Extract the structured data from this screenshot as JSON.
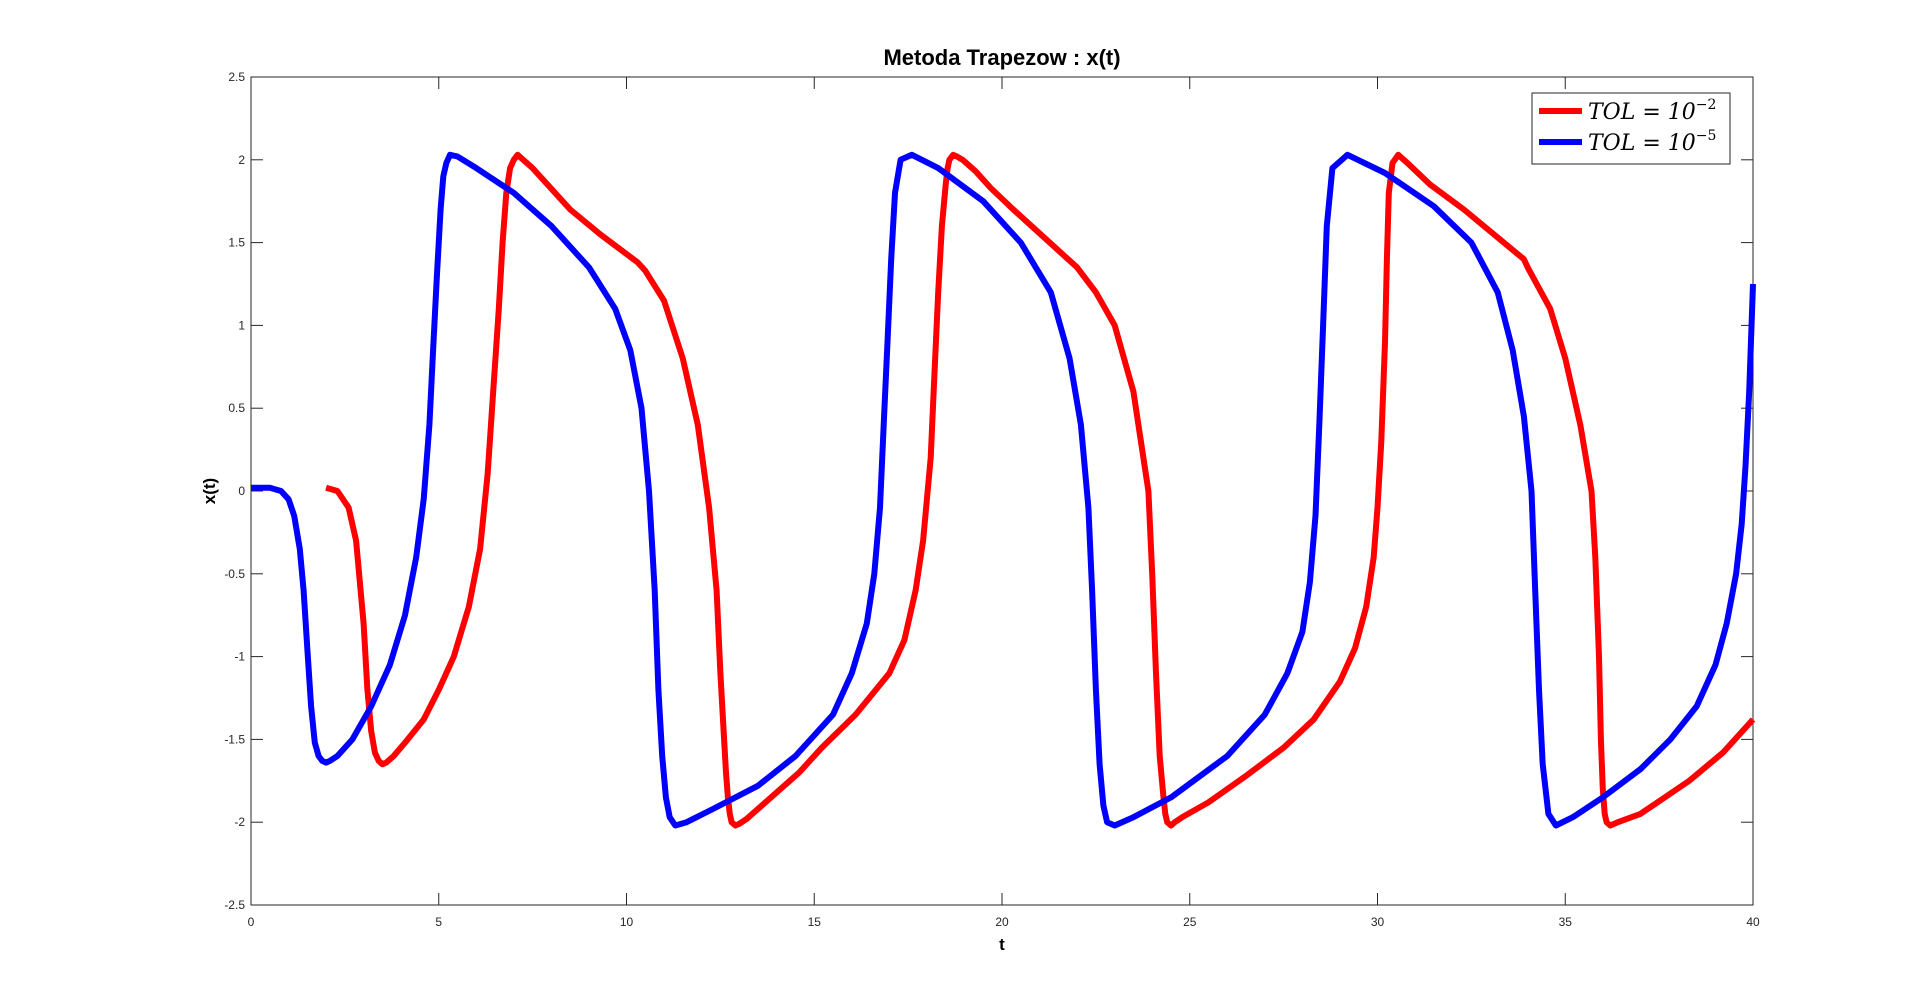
{
  "chart_data": {
    "type": "line",
    "title": "Metoda Trapezow : x(t)",
    "xlabel": "t",
    "ylabel": "x(t)",
    "xlim": [
      0,
      40
    ],
    "ylim": [
      -2.5,
      2.5
    ],
    "xticks": [
      "0",
      "5",
      "10",
      "15",
      "20",
      "25",
      "30",
      "35",
      "40"
    ],
    "yticks": [
      "2.5",
      "2",
      "1.5",
      "1",
      "0.5",
      "0",
      "-0.5",
      "-1",
      "-1.5",
      "-2",
      "-2.5"
    ],
    "grid": false,
    "legend_position": "top-right",
    "series": [
      {
        "name": "TOL = 10^-2",
        "legend_base": "TOL = 10",
        "legend_exp": "−2",
        "color": "#ff0000",
        "x": [
          2.0,
          2.3,
          2.6,
          2.8,
          3.0,
          3.1,
          3.2,
          3.3,
          3.4,
          3.5,
          3.6,
          3.8,
          4.1,
          4.6,
          5.0,
          5.4,
          5.8,
          6.1,
          6.3,
          6.45,
          6.6,
          6.7,
          6.8,
          6.9,
          7.0,
          7.1,
          7.25,
          7.5,
          7.9,
          8.5,
          9.3,
          10.3,
          10.5,
          11.0,
          11.5,
          11.9,
          12.2,
          12.4,
          12.5,
          12.6,
          12.65,
          12.7,
          12.75,
          12.8,
          12.9,
          13.0,
          13.2,
          13.6,
          14.0,
          14.6,
          15.2,
          16.1,
          17.0,
          17.4,
          17.7,
          17.9,
          18.1,
          18.2,
          18.3,
          18.4,
          18.5,
          18.55,
          18.6,
          18.7,
          18.8,
          18.95,
          19.3,
          19.7,
          20.3,
          22.0,
          22.5,
          23.0,
          23.5,
          23.9,
          24.0,
          24.1,
          24.2,
          24.3,
          24.35,
          24.4,
          24.5,
          24.6,
          24.8,
          25.5,
          26.5,
          27.5,
          28.3,
          29.0,
          29.4,
          29.7,
          29.9,
          30.0,
          30.1,
          30.2,
          30.25,
          30.3,
          30.4,
          30.55,
          30.8,
          31.4,
          32.3,
          33.9,
          34.0,
          34.6,
          35.0,
          35.4,
          35.7,
          35.8,
          35.9,
          35.95,
          36.0,
          36.05,
          36.1,
          36.2,
          36.4,
          37.0,
          38.3,
          39.2,
          40.0
        ],
        "y": [
          0.02,
          0.0,
          -0.1,
          -0.3,
          -0.8,
          -1.2,
          -1.45,
          -1.58,
          -1.63,
          -1.65,
          -1.64,
          -1.6,
          -1.52,
          -1.38,
          -1.2,
          -1.0,
          -0.7,
          -0.35,
          0.1,
          0.6,
          1.1,
          1.5,
          1.8,
          1.95,
          2.0,
          2.03,
          2.0,
          1.95,
          1.85,
          1.7,
          1.55,
          1.38,
          1.33,
          1.15,
          0.8,
          0.4,
          -0.1,
          -0.6,
          -1.1,
          -1.5,
          -1.7,
          -1.85,
          -1.95,
          -2.0,
          -2.02,
          -2.01,
          -1.98,
          -1.9,
          -1.82,
          -1.7,
          -1.55,
          -1.35,
          -1.1,
          -0.9,
          -0.6,
          -0.3,
          0.2,
          0.7,
          1.2,
          1.6,
          1.85,
          1.95,
          2.0,
          2.03,
          2.02,
          2.0,
          1.93,
          1.83,
          1.7,
          1.35,
          1.2,
          1.0,
          0.6,
          0.0,
          -0.5,
          -1.1,
          -1.6,
          -1.85,
          -1.95,
          -2.0,
          -2.02,
          -2.0,
          -1.97,
          -1.88,
          -1.72,
          -1.55,
          -1.38,
          -1.15,
          -0.95,
          -0.7,
          -0.4,
          -0.1,
          0.3,
          0.9,
          1.4,
          1.8,
          1.98,
          2.03,
          1.98,
          1.85,
          1.7,
          1.4,
          1.35,
          1.1,
          0.8,
          0.4,
          0.0,
          -0.4,
          -1.0,
          -1.5,
          -1.8,
          -1.95,
          -2.0,
          -2.02,
          -2.0,
          -1.95,
          -1.75,
          -1.58,
          -1.38
        ]
      },
      {
        "name": "TOL = 10^-5",
        "legend_base": "TOL = 10",
        "legend_exp": "−5",
        "color": "#0000ff",
        "x": [
          0.0,
          0.5,
          0.8,
          1.0,
          1.15,
          1.3,
          1.4,
          1.5,
          1.6,
          1.7,
          1.8,
          1.9,
          2.0,
          2.1,
          2.3,
          2.7,
          3.2,
          3.7,
          4.1,
          4.4,
          4.6,
          4.75,
          4.85,
          4.95,
          5.05,
          5.12,
          5.2,
          5.3,
          5.5,
          6.0,
          7.0,
          8.0,
          9.0,
          9.7,
          10.1,
          10.4,
          10.6,
          10.75,
          10.85,
          10.95,
          11.05,
          11.15,
          11.3,
          11.6,
          12.3,
          13.5,
          14.5,
          15.5,
          16.0,
          16.4,
          16.6,
          16.75,
          16.85,
          16.95,
          17.05,
          17.15,
          17.3,
          17.6,
          18.3,
          19.5,
          20.5,
          21.3,
          21.8,
          22.1,
          22.3,
          22.4,
          22.5,
          22.6,
          22.7,
          22.8,
          23.0,
          23.5,
          24.5,
          26.0,
          27.0,
          27.6,
          28.0,
          28.2,
          28.35,
          28.45,
          28.55,
          28.65,
          28.8,
          29.2,
          30.2,
          31.5,
          32.5,
          33.2,
          33.6,
          33.9,
          34.1,
          34.2,
          34.3,
          34.4,
          34.55,
          34.75,
          35.2,
          36.0,
          37.0,
          37.8,
          38.5,
          39.0,
          39.3,
          39.55,
          39.7,
          39.8,
          39.9,
          40.0
        ],
        "y": [
          0.02,
          0.02,
          0.0,
          -0.05,
          -0.15,
          -0.35,
          -0.6,
          -0.95,
          -1.3,
          -1.52,
          -1.6,
          -1.63,
          -1.64,
          -1.63,
          -1.6,
          -1.5,
          -1.3,
          -1.05,
          -0.75,
          -0.4,
          -0.05,
          0.4,
          0.85,
          1.3,
          1.7,
          1.9,
          1.98,
          2.03,
          2.02,
          1.95,
          1.8,
          1.6,
          1.35,
          1.1,
          0.85,
          0.5,
          0.0,
          -0.6,
          -1.2,
          -1.6,
          -1.85,
          -1.97,
          -2.02,
          -2.0,
          -1.92,
          -1.78,
          -1.6,
          -1.35,
          -1.1,
          -0.8,
          -0.5,
          -0.1,
          0.4,
          0.9,
          1.4,
          1.8,
          2.0,
          2.03,
          1.95,
          1.75,
          1.5,
          1.2,
          0.8,
          0.4,
          -0.1,
          -0.6,
          -1.2,
          -1.65,
          -1.9,
          -2.0,
          -2.02,
          -1.97,
          -1.85,
          -1.6,
          -1.35,
          -1.1,
          -0.85,
          -0.55,
          -0.15,
          0.4,
          1.0,
          1.6,
          1.95,
          2.03,
          1.92,
          1.72,
          1.5,
          1.2,
          0.85,
          0.45,
          0.0,
          -0.6,
          -1.2,
          -1.65,
          -1.95,
          -2.02,
          -1.97,
          -1.85,
          -1.68,
          -1.5,
          -1.3,
          -1.05,
          -0.8,
          -0.5,
          -0.2,
          0.15,
          0.6,
          1.25
        ]
      }
    ]
  }
}
